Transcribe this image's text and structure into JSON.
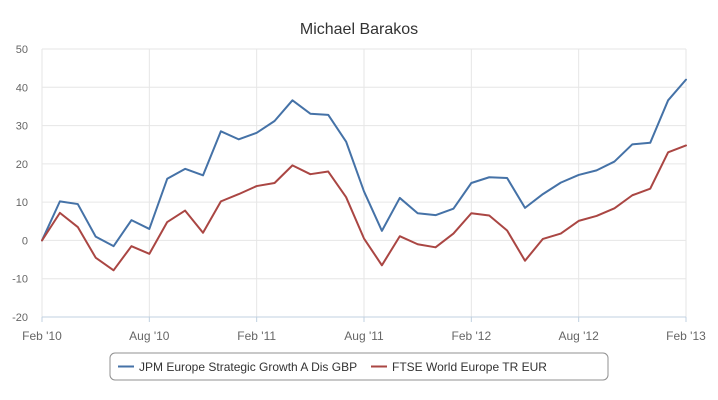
{
  "chart_data": {
    "type": "line",
    "title": "Michael Barakos",
    "xlabel": "",
    "ylabel": "",
    "ylim": [
      -20,
      50
    ],
    "yticks": [
      -20,
      -10,
      0,
      10,
      20,
      30,
      40,
      50
    ],
    "x_tick_labels": [
      "Feb '10",
      "Aug '10",
      "Feb '11",
      "Aug '11",
      "Feb '12",
      "Aug '12",
      "Feb '13"
    ],
    "x_tick_positions": [
      0,
      6,
      12,
      18,
      24,
      30,
      36
    ],
    "x": [
      0,
      1,
      2,
      3,
      4,
      5,
      6,
      7,
      8,
      9,
      10,
      11,
      12,
      13,
      14,
      15,
      16,
      17,
      18,
      19,
      20,
      21,
      22,
      23,
      24,
      25,
      26,
      27,
      28,
      29,
      30,
      31,
      32,
      33,
      34,
      35,
      36
    ],
    "grid": true,
    "legend_position": "bottom",
    "series": [
      {
        "name": "JPM Europe Strategic Growth A Dis GBP",
        "color": "#4572a7",
        "values": [
          0,
          10.2,
          9.5,
          1.0,
          -1.5,
          5.3,
          3.0,
          16.1,
          18.7,
          17.0,
          28.5,
          26.4,
          28.1,
          31.2,
          36.6,
          33.1,
          32.8,
          25.8,
          12.8,
          2.5,
          11.1,
          7.1,
          6.6,
          8.3,
          15.0,
          16.5,
          16.3,
          8.5,
          12.1,
          15.1,
          17.1,
          18.3,
          20.6,
          25.1,
          25.5,
          36.6,
          42.0
        ]
      },
      {
        "name": "FTSE World Europe TR EUR",
        "color": "#aa4643",
        "values": [
          0,
          7.2,
          3.5,
          -4.5,
          -7.8,
          -1.5,
          -3.5,
          4.8,
          7.8,
          2.0,
          10.2,
          12.1,
          14.2,
          15.0,
          19.6,
          17.3,
          18.0,
          11.3,
          0.5,
          -6.5,
          1.1,
          -1.0,
          -1.8,
          1.8,
          7.1,
          6.5,
          2.6,
          -5.3,
          0.4,
          1.8,
          5.1,
          6.4,
          8.4,
          11.8,
          13.5,
          23.0,
          24.8
        ]
      }
    ]
  }
}
